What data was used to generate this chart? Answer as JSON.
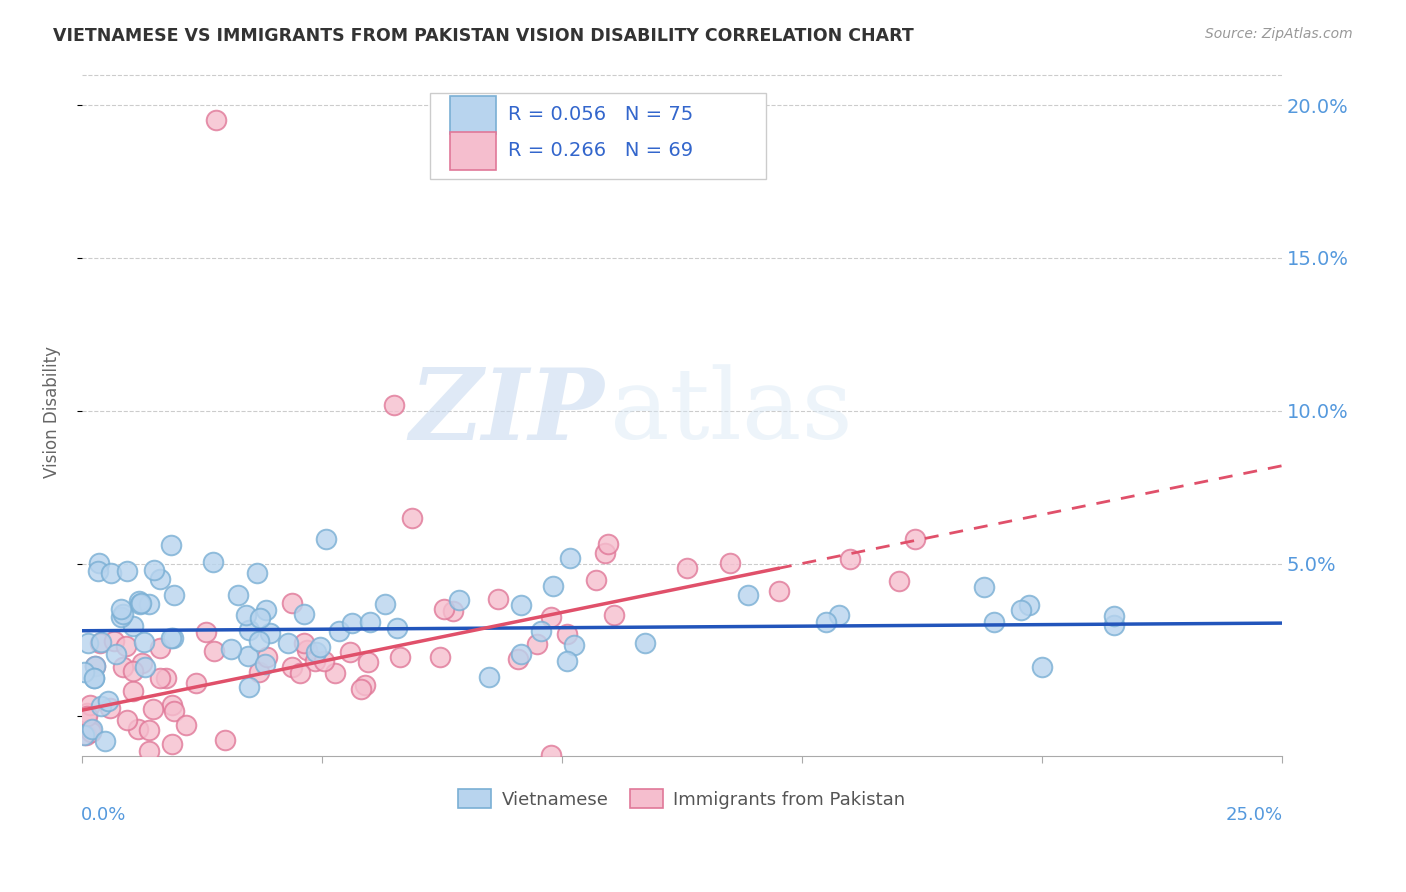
{
  "title": "VIETNAMESE VS IMMIGRANTS FROM PAKISTAN VISION DISABILITY CORRELATION CHART",
  "source": "Source: ZipAtlas.com",
  "ylabel": "Vision Disability",
  "yticks": [
    0.0,
    0.05,
    0.1,
    0.15,
    0.2
  ],
  "ytick_labels": [
    "",
    "5.0%",
    "10.0%",
    "15.0%",
    "20.0%"
  ],
  "xlim": [
    0.0,
    0.25
  ],
  "ylim": [
    -0.013,
    0.212
  ],
  "background_color": "#ffffff",
  "watermark_zip": "ZIP",
  "watermark_atlas": "atlas",
  "series": [
    {
      "name": "Vietnamese",
      "R": 0.056,
      "N": 75,
      "color": "#b8d4ee",
      "edge_color": "#7aafd4",
      "line_color": "#2255bb",
      "intercept": 0.028,
      "slope": 0.01
    },
    {
      "name": "Immigrants from Pakistan",
      "R": 0.266,
      "N": 69,
      "color": "#f5bece",
      "edge_color": "#e07898",
      "line_color": "#e0506a",
      "intercept": 0.002,
      "slope": 0.32
    }
  ]
}
